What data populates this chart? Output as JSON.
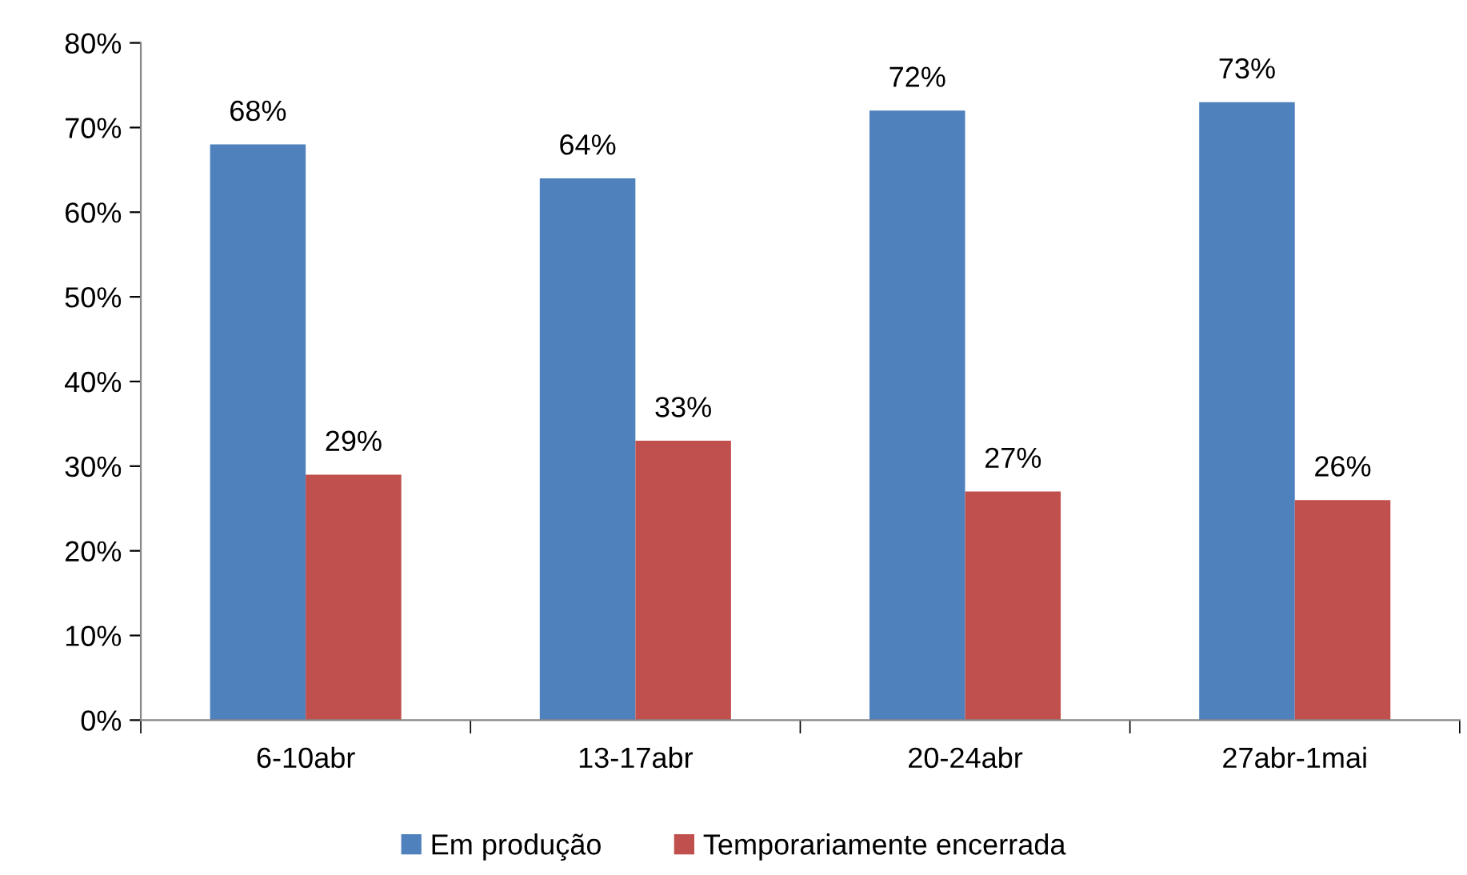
{
  "chart_data": {
    "type": "bar",
    "categories": [
      "6-10abr",
      "13-17abr",
      "20-24abr",
      "27abr-1mai"
    ],
    "series": [
      {
        "name": "Em produção",
        "color": "#4f81bd",
        "values": [
          68,
          64,
          72,
          73
        ],
        "value_labels": [
          "68%",
          "64%",
          "72%",
          "73%"
        ]
      },
      {
        "name": "Temporariamente encerrada",
        "color": "#c0504d",
        "values": [
          29,
          33,
          27,
          26
        ],
        "value_labels": [
          "29%",
          "33%",
          "27%",
          "26%"
        ]
      }
    ],
    "ylim": [
      0,
      80
    ],
    "yticks": [
      {
        "value": 0,
        "label": "0%"
      },
      {
        "value": 10,
        "label": "10%"
      },
      {
        "value": 20,
        "label": "20%"
      },
      {
        "value": 30,
        "label": "30%"
      },
      {
        "value": 40,
        "label": "40%"
      },
      {
        "value": 50,
        "label": "50%"
      },
      {
        "value": 60,
        "label": "60%"
      },
      {
        "value": 70,
        "label": "70%"
      },
      {
        "value": 80,
        "label": "80%"
      }
    ],
    "grid": false,
    "legend": "bottom"
  }
}
